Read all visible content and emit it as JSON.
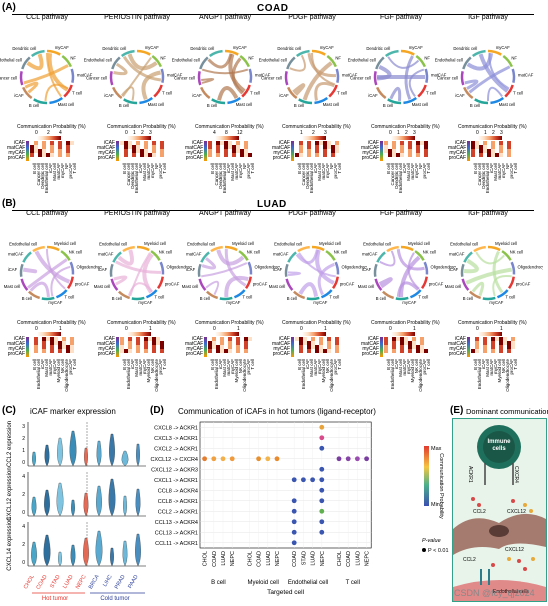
{
  "panels": {
    "A": {
      "label": "(A)",
      "cohort": "COAD"
    },
    "B": {
      "label": "(B)",
      "cohort": "LUAD"
    },
    "C": {
      "label": "(C)",
      "title": "iCAF marker expression"
    },
    "D": {
      "label": "(D)",
      "title": "Communication of iCAFs in hot tumors (ligand-receptor)"
    },
    "E": {
      "label": "(E)",
      "title": "Dominant communications"
    }
  },
  "pathways": [
    "CCL pathway",
    "PERIOSTIN pathway",
    "ANGPT pathway",
    "PDGF pathway",
    "FGF pathway",
    "IGF pathway"
  ],
  "comm_prob_label": "Communication Probability (%)",
  "coad": {
    "chord_labels": [
      "myCAF",
      "NF",
      "matCAF",
      "T cell",
      "Mast cell",
      "B cell",
      "iCAF",
      "Cancer cell",
      "Endothelial cell",
      "Dendritic cell"
    ],
    "rows": [
      "iCAF",
      "matCAF",
      "myCAF",
      "proCAF"
    ],
    "cols": [
      "B cell",
      "Cancer cell",
      "Dendritic cell",
      "Endothelial cell",
      "iCAF",
      "Mast cell",
      "matCAF",
      "myCAF",
      "NF",
      "proCAF",
      "T cell"
    ],
    "scales": [
      {
        "ticks": [
          "0",
          "2",
          "4"
        ]
      },
      {
        "ticks": [
          "0",
          "1",
          "2",
          "3"
        ]
      },
      {
        "ticks": [
          "4",
          "8",
          "12"
        ]
      },
      {
        "ticks": [
          "1",
          "2",
          "3"
        ]
      },
      {
        "ticks": [
          "0",
          "1",
          "2",
          "3"
        ]
      },
      {
        "ticks": [
          "0",
          "1",
          "2",
          "3"
        ]
      }
    ]
  },
  "luad": {
    "chord_labels": [
      "Myeloid cell",
      "NK cell",
      "Oligodendrocyte",
      "proCAF",
      "T cell",
      "myCAF",
      "B cell",
      "Mast cell",
      "iCAF",
      "matCAF",
      "Endothelial cell"
    ],
    "rows": [
      "iCAF",
      "matCAF",
      "myCAF",
      "proCAF"
    ],
    "cols": [
      "B cell",
      "Endothelial cell",
      "iCAF",
      "Mast cell",
      "matCAF",
      "myCAF",
      "Myeloid cell",
      "NK cell",
      "Oligodendrocyte",
      "proCAF",
      "T cell"
    ],
    "scale_ticks": [
      "0",
      "1"
    ]
  },
  "violin": {
    "genes": [
      {
        "name": "CCL2",
        "axis": "expression",
        "ticks": [
          "3",
          "2",
          "1",
          "0"
        ]
      },
      {
        "name": "CXCL12",
        "axis": "expression",
        "ticks": [
          "4",
          "2",
          "0"
        ]
      },
      {
        "name": "CXCL14",
        "axis": "expression",
        "ticks": [
          "4",
          "2",
          "0"
        ]
      }
    ],
    "hot": [
      "CHOL",
      "COAD",
      "STAD",
      "LUAD",
      "NEPC"
    ],
    "cold": [
      "BRCA",
      "LIHC",
      "PRAD",
      "PAAD"
    ],
    "hot_label": "Hot tumor",
    "cold_label": "Cold tumor",
    "colors": {
      "hot": "#e8372f",
      "cold": "#2b3f9a"
    }
  },
  "dotplot": {
    "pairs": [
      "CXCL8 -> ACKR1",
      "CXCL3 -> ACKR1",
      "CXCL2 -> ACKR1",
      "CXCL12 -> CXCR4",
      "CXCL12 -> ACKR3",
      "CXCL1 -> ACKR1",
      "CCL8 -> ACKR4",
      "CCL8 -> ACKR1",
      "CCL2 -> ACKR1",
      "CCL13 -> ACKR4",
      "CCL13 -> ACKR1",
      "CCL11 -> ACKR1"
    ],
    "groups": [
      {
        "name": "B cell",
        "cols": [
          "CHOL",
          "COAD",
          "LUAD",
          "NEPC"
        ]
      },
      {
        "name": "Myeloid cell",
        "cols": [
          "CHOL",
          "COAD",
          "LUAD",
          "NEPC"
        ]
      },
      {
        "name": "Endothelial cell",
        "cols": [
          "COAD",
          "STAD",
          "LUAD",
          "NEPC"
        ]
      },
      {
        "name": "T cell",
        "cols": [
          "CHOL",
          "COAD",
          "LUAD",
          "NEPC"
        ]
      }
    ],
    "xlabel": "Targeted cell",
    "legend_title": "Communication Probability",
    "legend_max": "Max",
    "legend_min": "Min",
    "pvalue_title": "P-value",
    "pvalue_entry": "P < 0.01"
  },
  "schematic": {
    "immune": "Immune cells",
    "ligands": [
      "CCL2",
      "CXCL12",
      "CCL2",
      "CXCL12"
    ],
    "receptors": [
      "ACKR1",
      "CXCR4"
    ],
    "endothelial": "Endothelial cells"
  },
  "watermark": "CSDN @fcy_qj2024"
}
